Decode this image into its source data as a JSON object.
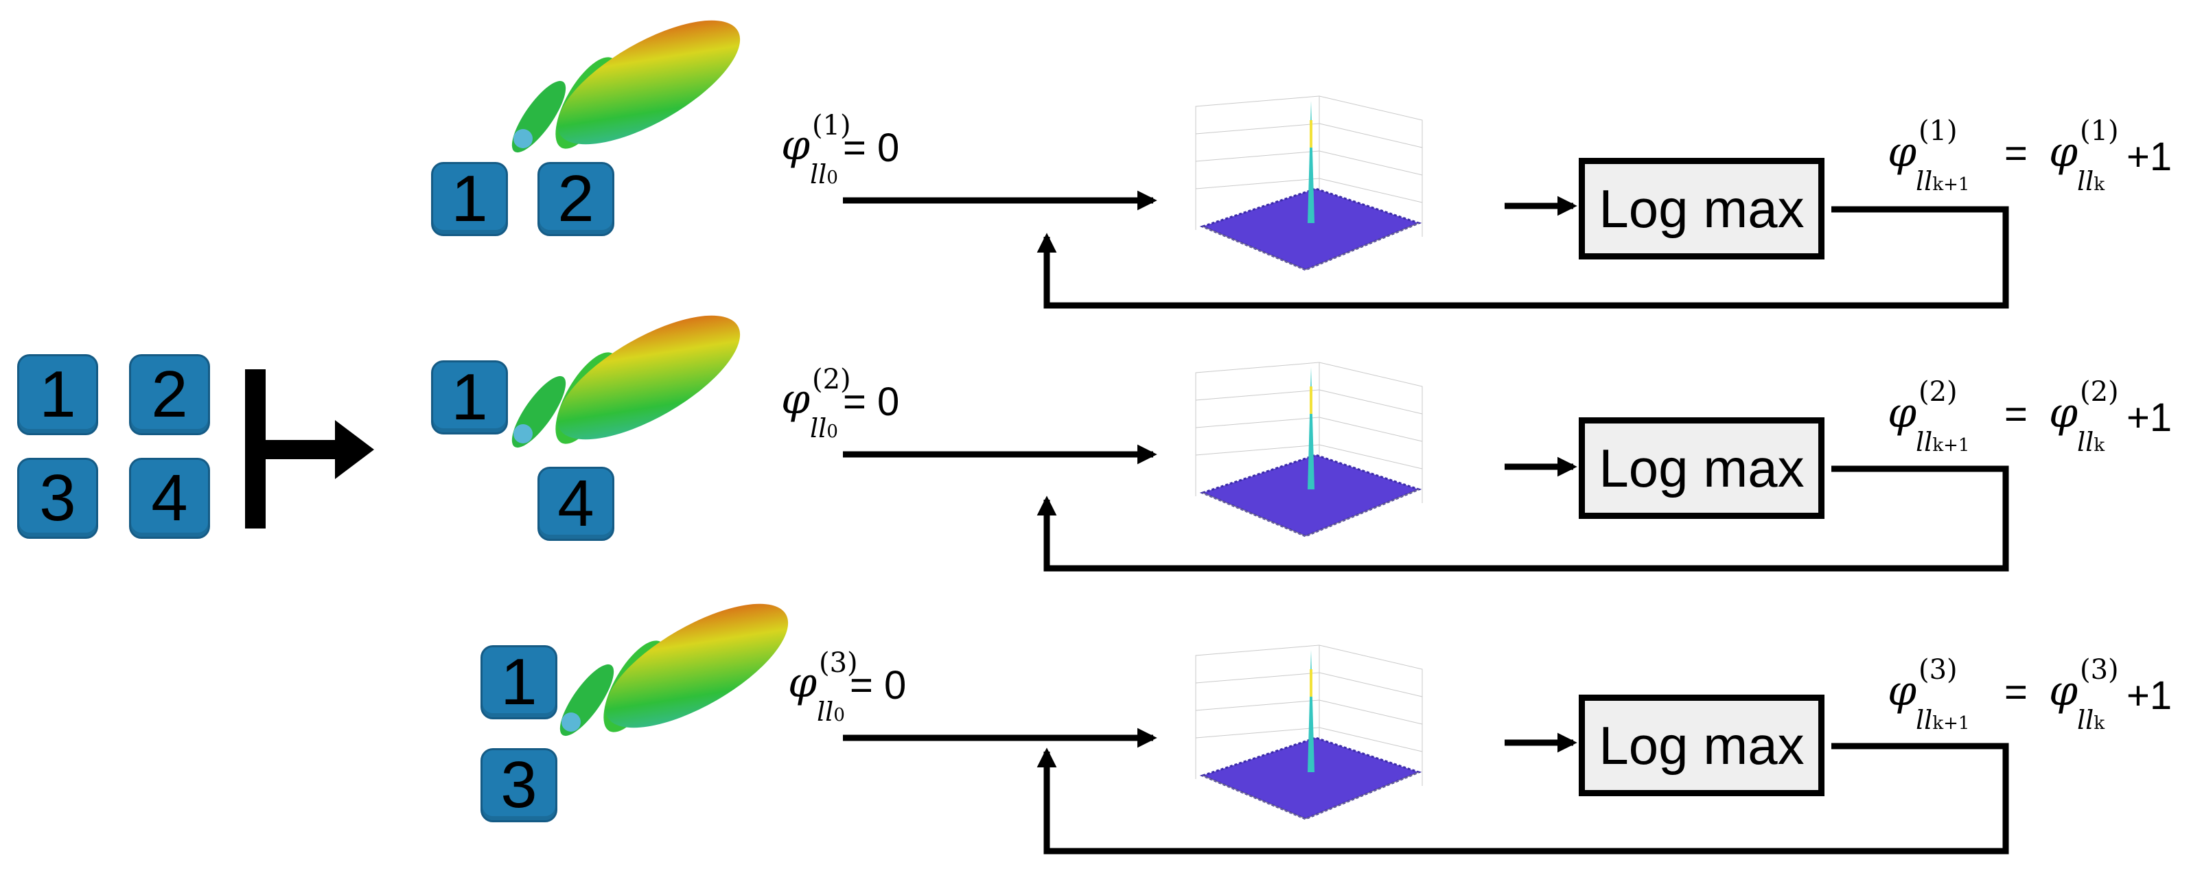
{
  "left_group": {
    "squares": [
      "1",
      "2",
      "3",
      "4"
    ]
  },
  "branches": [
    {
      "squares": [
        "1",
        "2"
      ],
      "init": {
        "symbol": "φ",
        "superscript": "(1)",
        "subscript": "ll",
        "subscript_index": "0",
        "rhs": "= 0"
      },
      "block_label": "Log max",
      "update": {
        "lhs_symbol": "φ",
        "lhs_superscript": "(1)",
        "lhs_subscript": "ll",
        "lhs_subscript_index": "k+1",
        "equals": "=",
        "rhs_symbol": "φ",
        "rhs_superscript": "(1)",
        "rhs_subscript": "ll",
        "rhs_subscript_index": "k",
        "plus": "+1"
      }
    },
    {
      "squares": [
        "1",
        "4"
      ],
      "init": {
        "symbol": "φ",
        "superscript": "(2)",
        "subscript": "ll",
        "subscript_index": "0",
        "rhs": "= 0"
      },
      "block_label": "Log max",
      "update": {
        "lhs_symbol": "φ",
        "lhs_superscript": "(2)",
        "lhs_subscript": "ll",
        "lhs_subscript_index": "k+1",
        "equals": "=",
        "rhs_symbol": "φ",
        "rhs_superscript": "(2)",
        "rhs_subscript": "ll",
        "rhs_subscript_index": "k",
        "plus": "+1"
      }
    },
    {
      "squares": [
        "1",
        "3"
      ],
      "init": {
        "symbol": "φ",
        "superscript": "(3)",
        "subscript": "ll",
        "subscript_index": "0",
        "rhs": "= 0"
      },
      "block_label": "Log max",
      "update": {
        "lhs_symbol": "φ",
        "lhs_superscript": "(3)",
        "lhs_subscript": "ll",
        "lhs_subscript_index": "k+1",
        "equals": "=",
        "rhs_symbol": "φ",
        "rhs_superscript": "(3)",
        "rhs_subscript": "ll",
        "rhs_subscript_index": "k",
        "plus": "+1"
      }
    }
  ],
  "colors": {
    "square_fill": "#1f7bb0",
    "block_fill": "#efefef",
    "surface": "#5a3fd6",
    "peak": "#35c6c0"
  },
  "icons": [
    "radiation-pattern-lobe-icon",
    "correlation-surface-plot-icon"
  ]
}
